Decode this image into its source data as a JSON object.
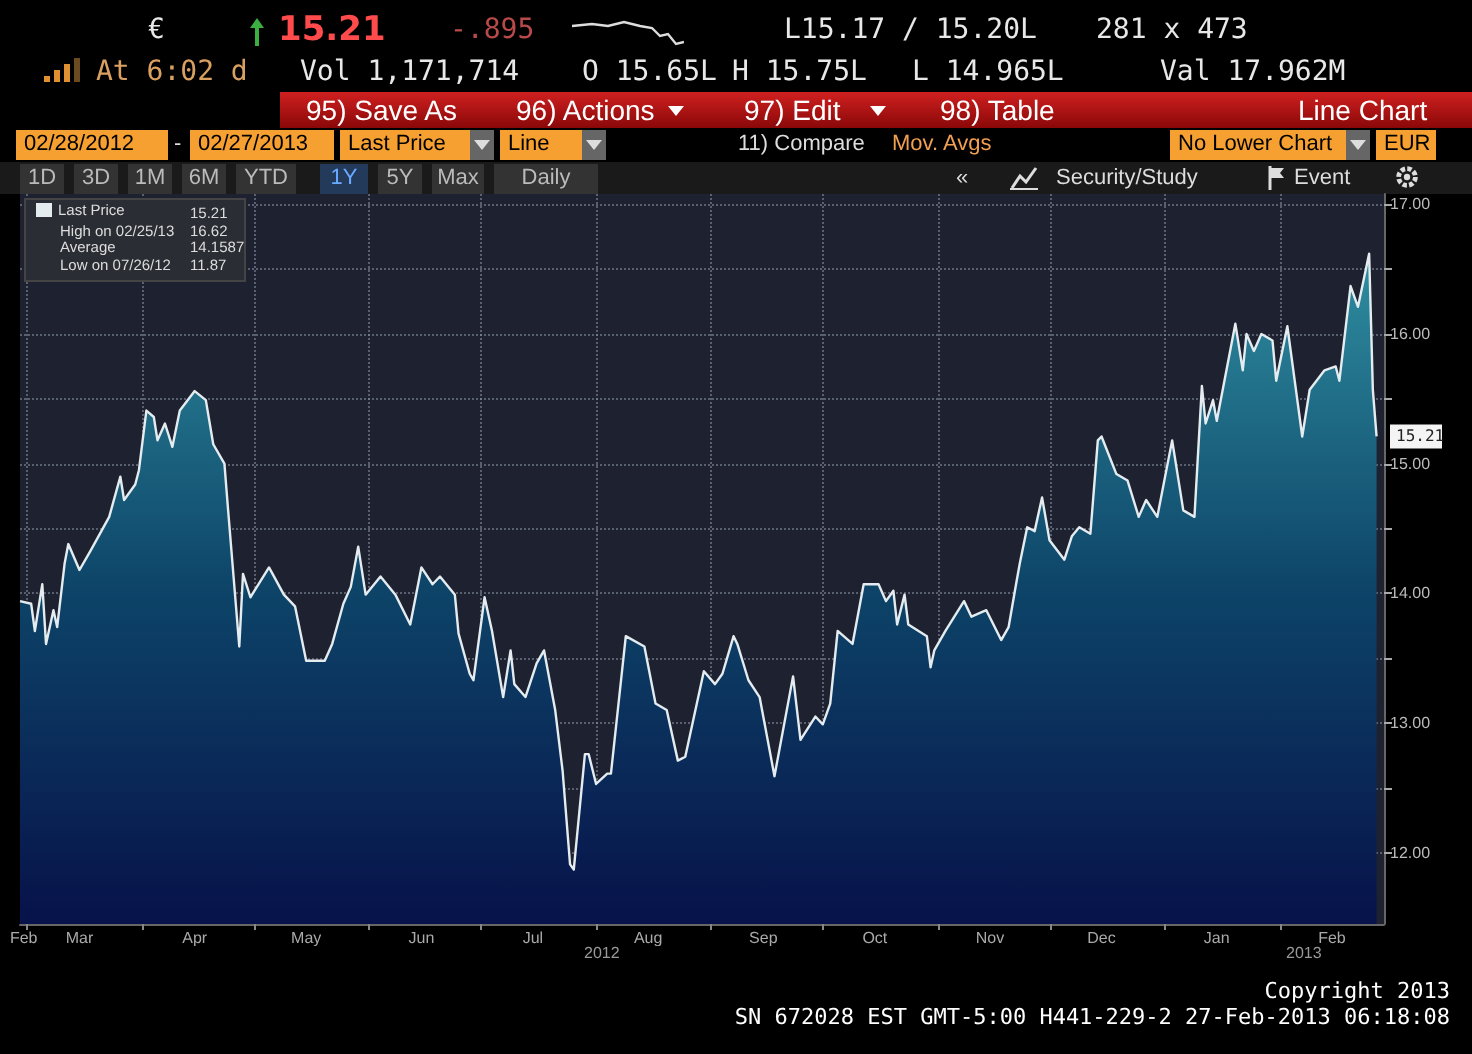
{
  "chart_data": {
    "type": "area",
    "legend": "top left",
    "grid": true,
    "marker": "none",
    "x": [
      "2012-02-28",
      "2012-03-02",
      "2012-03-03",
      "2012-03-05",
      "2012-03-06",
      "2012-03-08",
      "2012-03-09",
      "2012-03-11",
      "2012-03-12",
      "2012-03-15",
      "2012-03-18",
      "2012-03-23",
      "2012-03-26",
      "2012-03-27",
      "2012-03-30",
      "2012-03-31",
      "2012-04-02",
      "2012-04-04",
      "2012-04-05",
      "2012-04-07",
      "2012-04-09",
      "2012-04-11",
      "2012-04-15",
      "2012-04-18",
      "2012-04-20",
      "2012-04-23",
      "2012-04-24",
      "2012-04-27",
      "2012-04-28",
      "2012-04-30",
      "2012-05-05",
      "2012-05-09",
      "2012-05-12",
      "2012-05-15",
      "2012-05-20",
      "2012-05-22",
      "2012-05-25",
      "2012-05-27",
      "2012-05-29",
      "2012-05-31",
      "2012-06-04",
      "2012-06-08",
      "2012-06-12",
      "2012-06-15",
      "2012-06-18",
      "2012-06-20",
      "2012-06-24",
      "2012-06-25",
      "2012-06-28",
      "2012-06-29",
      "2012-07-02",
      "2012-07-04",
      "2012-07-07",
      "2012-07-09",
      "2012-07-10",
      "2012-07-13",
      "2012-07-16",
      "2012-07-18",
      "2012-07-21",
      "2012-07-23",
      "2012-07-25",
      "2012-07-26",
      "2012-07-29",
      "2012-07-30",
      "2012-08-01",
      "2012-08-04",
      "2012-08-05",
      "2012-08-09",
      "2012-08-14",
      "2012-08-17",
      "2012-08-20",
      "2012-08-23",
      "2012-08-25",
      "2012-08-30",
      "2012-09-02",
      "2012-09-04",
      "2012-09-07",
      "2012-09-08",
      "2012-09-11",
      "2012-09-14",
      "2012-09-18",
      "2012-09-23",
      "2012-09-25",
      "2012-09-29",
      "2012-10-01",
      "2012-10-03",
      "2012-10-05",
      "2012-10-09",
      "2012-10-12",
      "2012-10-16",
      "2012-10-18",
      "2012-10-20",
      "2012-10-21",
      "2012-10-23",
      "2012-10-24",
      "2012-10-29",
      "2012-10-30",
      "2012-10-31",
      "2012-11-03",
      "2012-11-08",
      "2012-11-10",
      "2012-11-14",
      "2012-11-18",
      "2012-11-20",
      "2012-11-22",
      "2012-11-23",
      "2012-11-25",
      "2012-11-27",
      "2012-11-29",
      "2012-12-01",
      "2012-12-05",
      "2012-12-07",
      "2012-12-09",
      "2012-12-12",
      "2012-12-14",
      "2012-12-15",
      "2012-12-19",
      "2012-12-22",
      "2012-12-25",
      "2012-12-27",
      "2012-12-30",
      "2013-01-03",
      "2013-01-06",
      "2013-01-09",
      "2013-01-11",
      "2013-01-12",
      "2013-01-14",
      "2013-01-15",
      "2013-01-20",
      "2013-01-22",
      "2013-01-23",
      "2013-01-25",
      "2013-01-27",
      "2013-01-30",
      "2013-01-31",
      "2013-02-03",
      "2013-02-07",
      "2013-02-09",
      "2013-02-13",
      "2013-02-16",
      "2013-02-17",
      "2013-02-20",
      "2013-02-22",
      "2013-02-25",
      "2013-02-26",
      "2013-02-27"
    ],
    "series": [
      {
        "name": "Last Price",
        "color": "#e4ecf0",
        "values": [
          13.94,
          13.92,
          13.71,
          14.07,
          13.61,
          13.87,
          13.74,
          14.23,
          14.38,
          14.18,
          14.33,
          14.59,
          14.9,
          14.72,
          14.84,
          14.95,
          15.41,
          15.36,
          15.18,
          15.31,
          15.13,
          15.41,
          15.56,
          15.49,
          15.15,
          15.0,
          14.64,
          13.59,
          14.15,
          13.97,
          14.2,
          13.99,
          13.9,
          13.48,
          13.48,
          13.61,
          13.92,
          14.05,
          14.36,
          13.99,
          14.13,
          13.99,
          13.76,
          14.2,
          14.07,
          14.13,
          13.99,
          13.69,
          13.38,
          13.33,
          13.97,
          13.71,
          13.2,
          13.56,
          13.3,
          13.2,
          13.46,
          13.56,
          13.1,
          12.63,
          11.91,
          11.87,
          12.76,
          12.76,
          12.53,
          12.61,
          12.61,
          13.67,
          13.59,
          13.15,
          13.1,
          12.71,
          12.74,
          13.4,
          13.3,
          13.38,
          13.67,
          13.61,
          13.33,
          13.2,
          12.59,
          13.36,
          12.87,
          13.05,
          12.99,
          13.15,
          13.71,
          13.61,
          14.07,
          14.07,
          13.94,
          14.02,
          13.76,
          13.99,
          13.76,
          13.67,
          13.43,
          13.56,
          13.71,
          13.94,
          13.82,
          13.87,
          13.64,
          13.74,
          14.07,
          14.23,
          14.51,
          14.48,
          14.74,
          14.41,
          14.26,
          14.44,
          14.51,
          14.46,
          15.18,
          15.21,
          14.92,
          14.87,
          14.59,
          14.72,
          14.59,
          15.18,
          14.64,
          14.59,
          15.6,
          15.31,
          15.49,
          15.33,
          16.08,
          15.72,
          16.0,
          15.87,
          16.0,
          15.95,
          15.64,
          16.06,
          15.21,
          15.57,
          15.72,
          15.75,
          15.64,
          16.37,
          16.21,
          16.62,
          15.57,
          15.21
        ]
      }
    ],
    "xlim": [
      "2012-02-28",
      "2013-03-01"
    ],
    "xticks": [
      {
        "value": "2012-02-29",
        "label": "Feb"
      },
      {
        "value": "2012-03-01",
        "label": null
      },
      {
        "value": "2012-03-15",
        "label": "Mar"
      },
      {
        "value": "2012-04-01",
        "label": null
      },
      {
        "value": "2012-04-15",
        "label": "Apr"
      },
      {
        "value": "2012-05-01",
        "label": null
      },
      {
        "value": "2012-05-15",
        "label": "May"
      },
      {
        "value": "2012-06-01",
        "label": null
      },
      {
        "value": "2012-06-15",
        "label": "Jun"
      },
      {
        "value": "2012-07-01",
        "label": null
      },
      {
        "value": "2012-07-15",
        "label": "Jul"
      },
      {
        "value": "2012-08-01",
        "label": null
      },
      {
        "value": "2012-08-15",
        "label": "Aug"
      },
      {
        "value": "2012-09-01",
        "label": null
      },
      {
        "value": "2012-09-15",
        "label": "Sep"
      },
      {
        "value": "2012-10-01",
        "label": null
      },
      {
        "value": "2012-10-15",
        "label": "Oct"
      },
      {
        "value": "2012-11-01",
        "label": null
      },
      {
        "value": "2012-11-15",
        "label": "Nov"
      },
      {
        "value": "2012-12-01",
        "label": null
      },
      {
        "value": "2012-12-15",
        "label": "Dec"
      },
      {
        "value": "2013-01-01",
        "label": null
      },
      {
        "value": "2013-01-15",
        "label": "Jan"
      },
      {
        "value": "2013-02-01",
        "label": null
      },
      {
        "value": "2013-02-15",
        "label": "Feb"
      }
    ],
    "ylim": [
      11.45,
      17.08
    ],
    "yticks": [
      {
        "value": 12,
        "label": "12.00"
      },
      {
        "value": 12.5,
        "label": null
      },
      {
        "value": 13,
        "label": "13.00"
      },
      {
        "value": 13.5,
        "label": null
      },
      {
        "value": 14,
        "label": "14.00"
      },
      {
        "value": 14.5,
        "label": null
      },
      {
        "value": 15,
        "label": "15.00"
      },
      {
        "value": 15.5,
        "label": null
      },
      {
        "value": 16,
        "label": "16.00"
      },
      {
        "value": 16.5,
        "label": null
      },
      {
        "value": 17,
        "label": "17.00"
      }
    ],
    "annotations": [
      "€",
      "15.21",
      "-.895",
      "L15.17 / 15.20L",
      "281 x 473",
      "At 6:02 d",
      "Vol 1,171,714",
      "O 15.65L",
      "H 15.75L",
      "L 14.965L",
      "Val 17.962M",
      "95) Save As",
      "96) Actions",
      "97) Edit",
      "98) Table",
      "Line Chart",
      "02/28/2012",
      "-",
      "02/27/2013",
      "Last Price",
      "Line",
      "11) Compare",
      "Mov. Avgs",
      "No Lower Chart",
      "EUR",
      "1D",
      "3D",
      "1M",
      "6M",
      "YTD",
      "1Y",
      "5Y",
      "Max",
      "Daily",
      "«",
      "Security/Study",
      "Event",
      "15.21",
      "High on 02/25/13",
      "16.62",
      "Average",
      "14.1587",
      "Low on 07/26/12",
      "11.87",
      "2012",
      "2013",
      "Copyright 2013",
      "SN 672028 EST  GMT-5:00 H441-229-2 27-Feb-2013 06:18:08",
      {
        "text": "15.21",
        "x": "2013-02-27",
        "y": 15.21
      }
    ]
  }
}
